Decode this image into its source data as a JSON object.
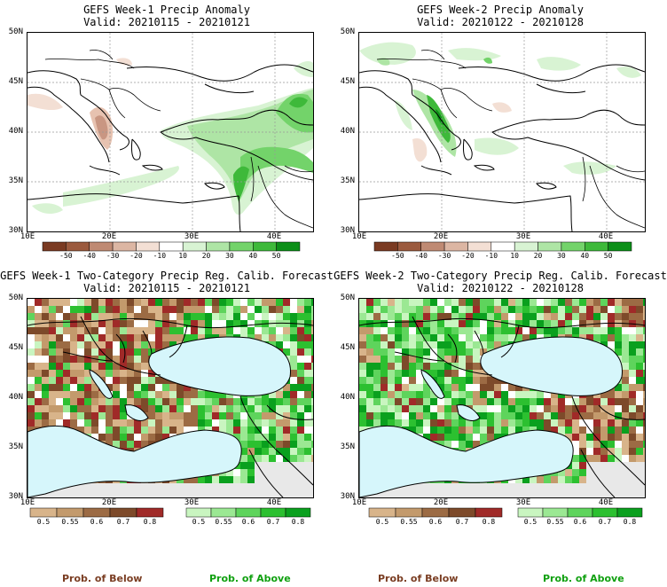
{
  "panels": [
    {
      "title": "GEFS Week-1 Precip Anomaly",
      "valid": "Valid: 20210115 - 20210121"
    },
    {
      "title": "GEFS Week-2 Precip Anomaly",
      "valid": "Valid: 20210122 - 20210128"
    },
    {
      "title": "GEFS Week-1 Two-Category Precip Reg. Calib. Forecast",
      "valid": "Valid: 20210115 - 20210121"
    },
    {
      "title": "GEFS Week-2 Two-Category Precip Reg. Calib. Forecast",
      "valid": "Valid: 20210122 - 20210128"
    }
  ],
  "lat_labels": [
    "50N",
    "45N",
    "40N",
    "35N",
    "30N"
  ],
  "lon_labels": [
    "10E",
    "20E",
    "30E",
    "40E"
  ],
  "anomaly_colorbar": {
    "labels": [
      "-50",
      "-40",
      "-30",
      "-20",
      "-10",
      "10",
      "20",
      "30",
      "40",
      "50"
    ],
    "colors": [
      "#7a3a22",
      "#9b5a3e",
      "#bf8a73",
      "#dcb6a3",
      "#f3dfd4",
      "#ffffff",
      "#d8f3d3",
      "#aee5a5",
      "#73d36a",
      "#3eb93a",
      "#0c8f18"
    ]
  },
  "below_colorbar": {
    "labels": [
      "0.5",
      "0.55",
      "0.6",
      "0.7",
      "0.8"
    ],
    "colors": [
      "#d8b48a",
      "#c39a6c",
      "#9c6b44",
      "#7d4a2a",
      "#a02a28"
    ],
    "caption": "Prob. of Below"
  },
  "above_colorbar": {
    "labels": [
      "0.5",
      "0.55",
      "0.6",
      "0.7",
      "0.8"
    ],
    "colors": [
      "#c9f5c0",
      "#9be893",
      "#5ed45c",
      "#2cc030",
      "#0aa01e"
    ],
    "caption": "Prob. of Above"
  },
  "colors": {
    "sea": "#d6f6fb",
    "land": "#ffffff",
    "outside_domain": "#e8e8e8",
    "below_text": "#7a3d22",
    "above_text": "#10a010"
  }
}
